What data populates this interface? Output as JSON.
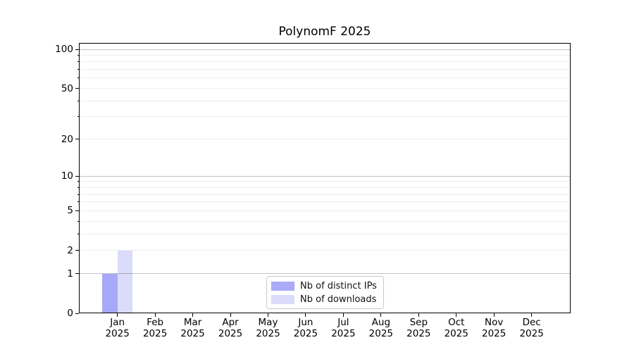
{
  "chart_data": {
    "type": "bar",
    "title": "PolynomF 2025",
    "categories": [
      "Jan 2025",
      "Feb 2025",
      "Mar 2025",
      "Apr 2025",
      "May 2025",
      "Jun 2025",
      "Jul 2025",
      "Aug 2025",
      "Sep 2025",
      "Oct 2025",
      "Nov 2025",
      "Dec 2025"
    ],
    "series": [
      {
        "name": "Nb of distinct IPs",
        "color": "#aaaaf8",
        "fill_rgba": "rgba(0,0,235,0.34)",
        "values": [
          1,
          0,
          0,
          0,
          0,
          0,
          0,
          0,
          0,
          0,
          0,
          0
        ]
      },
      {
        "name": "Nb of downloads",
        "color": "#dcdcfa",
        "fill_rgba": "rgba(0,0,235,0.14)",
        "values": [
          2,
          0,
          0,
          0,
          0,
          0,
          0,
          0,
          0,
          0,
          0,
          0
        ]
      }
    ],
    "y_axis": {
      "scale": "log1p",
      "ticks": [
        0,
        1,
        2,
        5,
        10,
        20,
        50,
        100
      ],
      "minor_ticks": [
        3,
        4,
        6,
        7,
        8,
        9,
        30,
        40,
        60,
        70,
        80,
        90
      ],
      "range_top_approx": 112
    },
    "grid": {
      "major_values": [
        1,
        10,
        100
      ],
      "minor_values": [
        2,
        3,
        4,
        5,
        6,
        7,
        8,
        9,
        20,
        30,
        40,
        50,
        60,
        70,
        80,
        90
      ],
      "major_color": "#c3c3c3",
      "minor_color": "#ededed"
    },
    "legend": {
      "position": "lower-center"
    }
  }
}
